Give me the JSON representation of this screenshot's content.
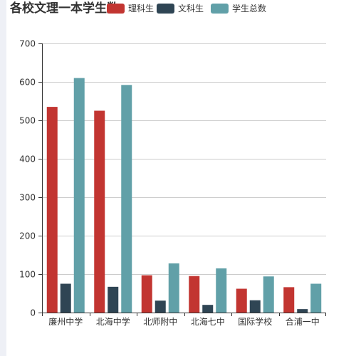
{
  "title": "各校文理一本学生数",
  "colors": {
    "series": [
      "#c23531",
      "#2f4554",
      "#61a0a8"
    ]
  },
  "chart_data": {
    "type": "bar",
    "title": "各校文理一本学生数",
    "categories": [
      "廉州中学",
      "北海中学",
      "北师附中",
      "北海七中",
      "国际学校",
      "合浦一中"
    ],
    "series": [
      {
        "name": "理科生",
        "values": [
          535,
          525,
          97,
          95,
          62,
          66
        ]
      },
      {
        "name": "文科生",
        "values": [
          75,
          67,
          31,
          20,
          32,
          9
        ]
      },
      {
        "name": "学生总数",
        "values": [
          610,
          592,
          128,
          115,
          94,
          75
        ]
      }
    ],
    "ylim": [
      0,
      700
    ],
    "yticks": [
      0,
      100,
      200,
      300,
      400,
      500,
      600,
      700
    ],
    "grid": true,
    "legend_position": "top"
  }
}
